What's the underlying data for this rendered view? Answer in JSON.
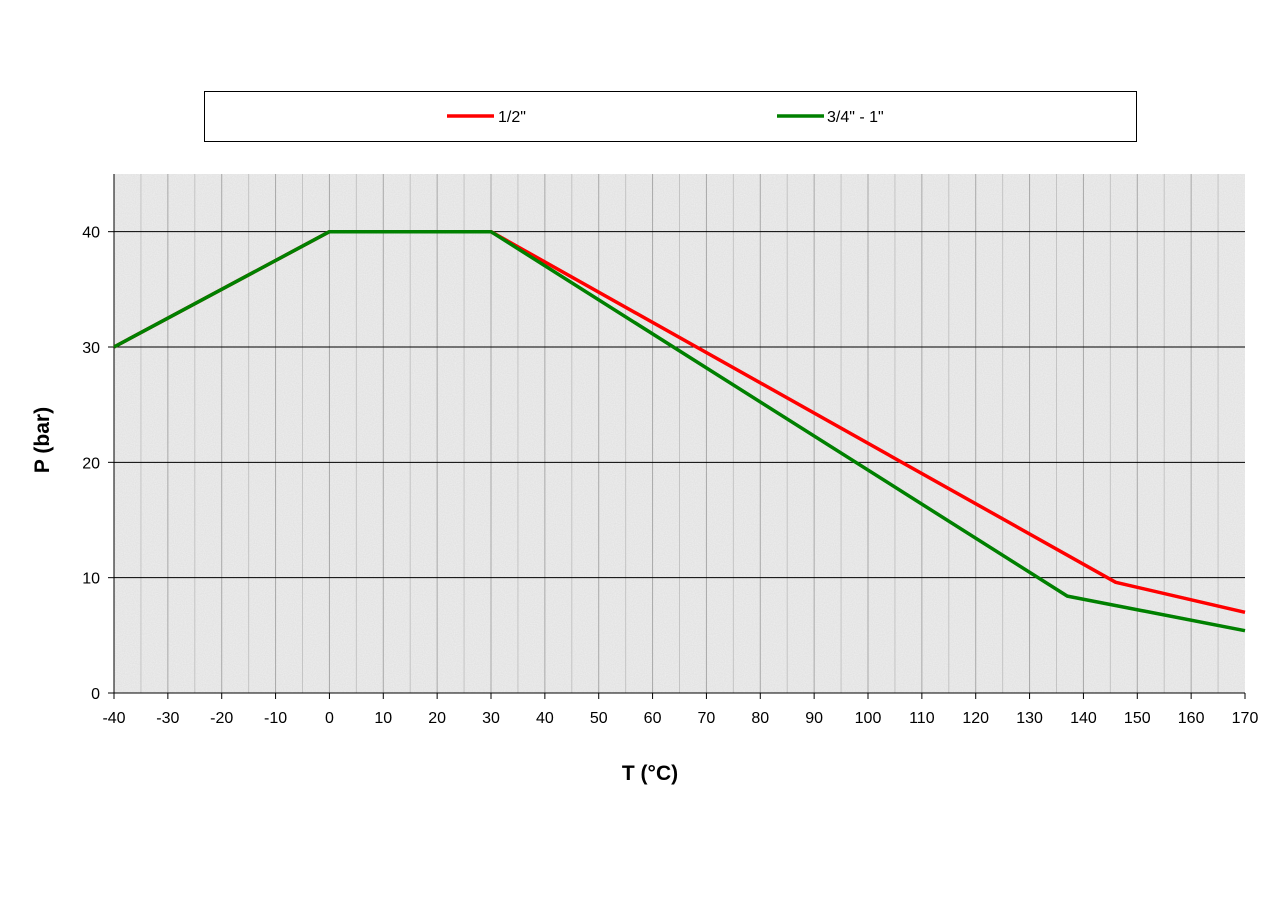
{
  "chart_data": {
    "type": "line",
    "title": "",
    "xlabel": "T (°C)",
    "ylabel": "P (bar)",
    "xlim": [
      -40,
      170
    ],
    "ylim": [
      0,
      45
    ],
    "x_ticks": [
      -40,
      -30,
      -20,
      -10,
      0,
      10,
      20,
      30,
      40,
      50,
      60,
      70,
      80,
      90,
      100,
      110,
      120,
      130,
      140,
      150,
      160,
      170
    ],
    "y_ticks": [
      0,
      10,
      20,
      30,
      40
    ],
    "x_tick_labels": [
      "-40",
      "-30",
      "-20",
      "-10",
      "0",
      "10",
      "20",
      "30",
      "40",
      "50",
      "60",
      "70",
      "80",
      "90",
      "100",
      "110",
      "120",
      "130",
      "140",
      "150",
      "160",
      "170"
    ],
    "y_tick_labels": [
      "0",
      "10",
      "20",
      "30",
      "40"
    ],
    "grid": "vertical and horizontal",
    "legend_position": "top",
    "series": [
      {
        "name": "1/2\"",
        "color": "#ff0000",
        "points": [
          [
            -40,
            30
          ],
          [
            0,
            40
          ],
          [
            30,
            40
          ],
          [
            146,
            9.6
          ],
          [
            170,
            7
          ]
        ]
      },
      {
        "name": "3/4\" - 1\"",
        "color": "#008000",
        "points": [
          [
            -40,
            30
          ],
          [
            0,
            40
          ],
          [
            30,
            40
          ],
          [
            137,
            8.4
          ],
          [
            170,
            5.4
          ]
        ]
      }
    ]
  }
}
